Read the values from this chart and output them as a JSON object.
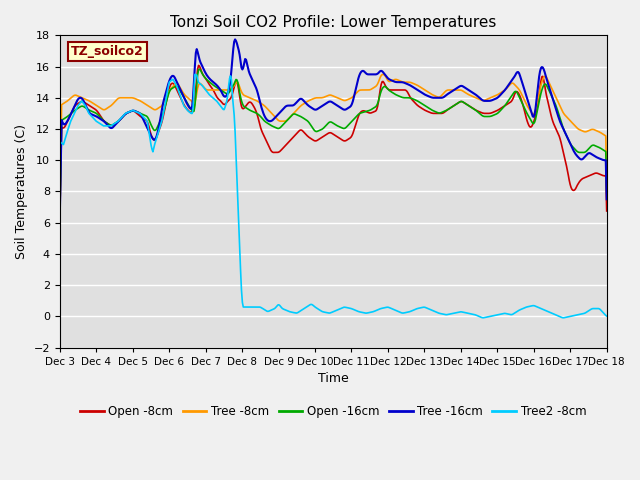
{
  "title": "Tonzi Soil CO2 Profile: Lower Temperatures",
  "xlabel": "Time",
  "ylabel": "Soil Temperatures (C)",
  "ylim": [
    -2,
    18
  ],
  "yticks": [
    -2,
    0,
    2,
    4,
    6,
    8,
    10,
    12,
    14,
    16,
    18
  ],
  "plot_bg": "#e0e0e0",
  "fig_bg": "#f0f0f0",
  "annotation_text": "TZ_soilco2",
  "annotation_bg": "#ffffcc",
  "annotation_border": "#8b0000",
  "series": {
    "Open -8cm": {
      "color": "#cc0000",
      "lw": 1.2
    },
    "Tree -8cm": {
      "color": "#ff9900",
      "lw": 1.2
    },
    "Open -16cm": {
      "color": "#00aa00",
      "lw": 1.2
    },
    "Tree -16cm": {
      "color": "#0000cc",
      "lw": 1.5
    },
    "Tree2 -8cm": {
      "color": "#00ccff",
      "lw": 1.2
    }
  },
  "x_start": 3,
  "x_end": 18,
  "xtick_positions": [
    3,
    4,
    5,
    6,
    7,
    8,
    9,
    10,
    11,
    12,
    13,
    14,
    15,
    16,
    17,
    18
  ],
  "xtick_labels": [
    "Dec 3",
    "Dec 4",
    "Dec 5",
    "Dec 6",
    "Dec 7",
    "Dec 8",
    "Dec 9",
    "Dec 10",
    "Dec 11",
    "Dec 12",
    "Dec 13",
    "Dec 14",
    "Dec 15",
    "Dec 16",
    "Dec 17",
    "Dec 18"
  ],
  "figsize": [
    6.4,
    4.8
  ],
  "dpi": 100
}
